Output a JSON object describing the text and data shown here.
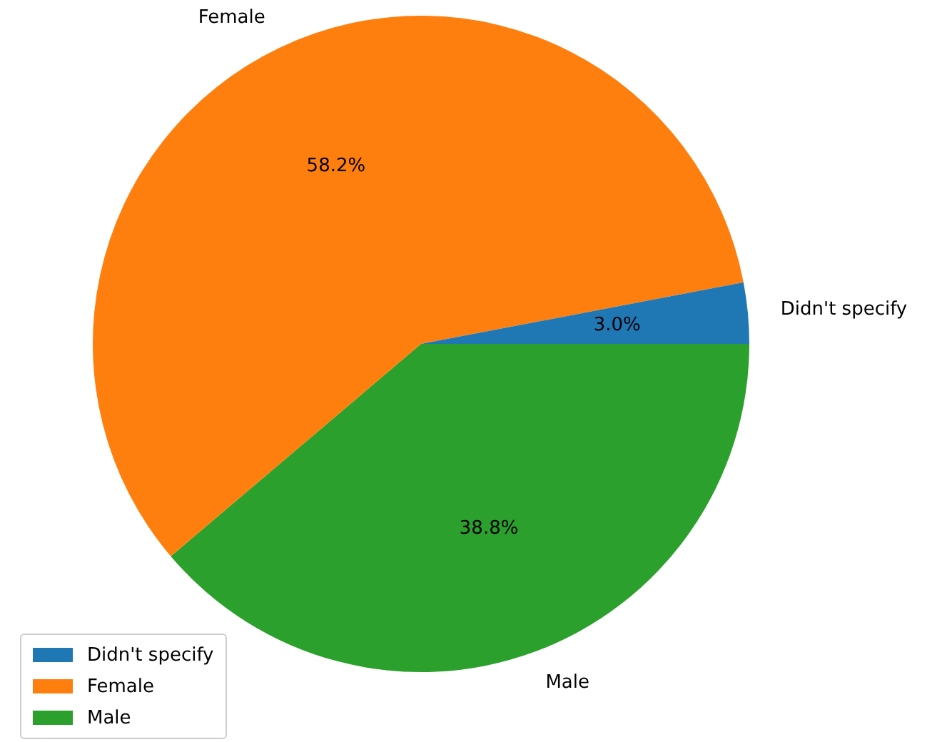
{
  "chart_data": {
    "type": "pie",
    "categories": [
      "Didn't specify",
      "Female",
      "Male"
    ],
    "values": [
      3.0,
      58.2,
      38.8
    ],
    "colors": [
      "#1f77b4",
      "#ff7f0e",
      "#2ca02c"
    ],
    "value_labels": [
      "3.0%",
      "58.2%",
      "38.8%"
    ],
    "legend": "bottom left"
  }
}
